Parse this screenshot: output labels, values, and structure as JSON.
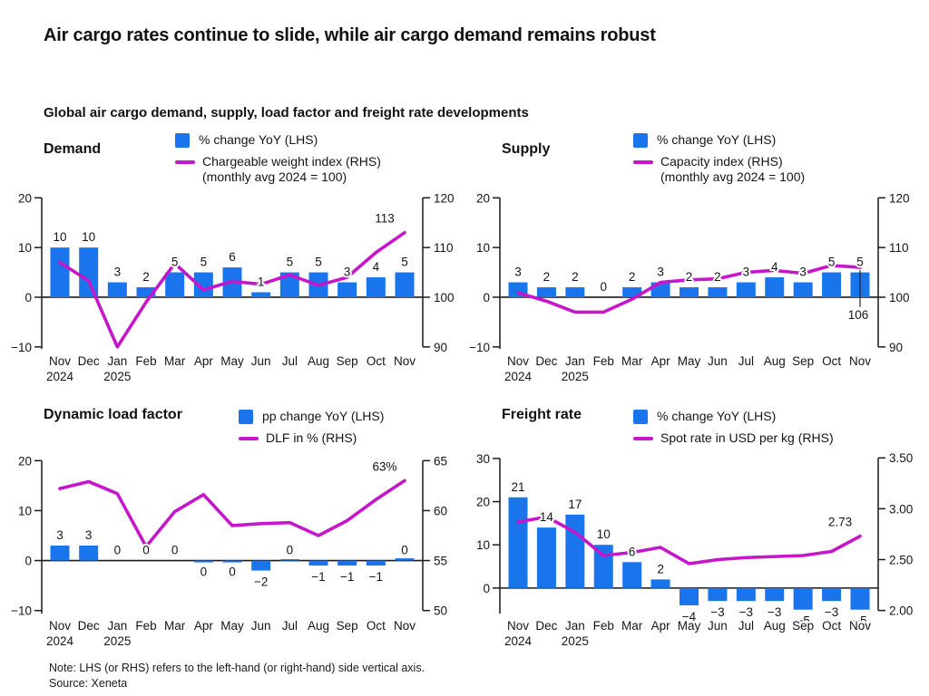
{
  "header": {
    "title": "Air cargo rates continue to slide, while air cargo demand remains robust",
    "subtitle": "Global air cargo demand, supply, load factor and freight rate developments"
  },
  "note": {
    "line1": "Note: LHS (or RHS) refers to the left-hand (or right-hand) side vertical axis.",
    "line2": "Source: Xeneta"
  },
  "colors": {
    "bar": "#1a75ec",
    "line": "#c517c9",
    "axis": "#1a1a1a",
    "text": "#151515"
  },
  "chart_data": [
    {
      "type": "bar+line",
      "title": "Demand",
      "legend": {
        "bar": "% change YoY (LHS)",
        "line": "Chargeable weight index (RHS)",
        "line_sub": "(monthly avg 2024 = 100)"
      },
      "categories": [
        "Nov",
        "Dec",
        "Jan",
        "Feb",
        "Mar",
        "Apr",
        "May",
        "Jun",
        "Jul",
        "Aug",
        "Sep",
        "Oct",
        "Nov"
      ],
      "year_labels": [
        {
          "index": 0,
          "label": "2024"
        },
        {
          "index": 2,
          "label": "2025"
        }
      ],
      "bar_values": [
        10,
        10,
        3,
        2,
        5,
        5,
        6,
        1,
        5,
        5,
        3,
        4,
        5
      ],
      "line_values": [
        107,
        103.3,
        90,
        99,
        106.8,
        101.5,
        103.2,
        102.6,
        104.5,
        102.4,
        104,
        109,
        113
      ],
      "line_end_label": "113",
      "left_axis_ticks": [
        20,
        10,
        0,
        -10
      ],
      "right_axis_ticks": [
        "120",
        "110",
        "100",
        "90"
      ],
      "left_range": [
        -10,
        20
      ],
      "right_range": [
        90,
        120
      ]
    },
    {
      "type": "bar+line",
      "title": "Supply",
      "legend": {
        "bar": "% change YoY (LHS)",
        "line": "Capacity index (RHS)",
        "line_sub": "(monthly avg 2024 = 100)"
      },
      "categories": [
        "Nov",
        "Dec",
        "Jan",
        "Feb",
        "Mar",
        "Apr",
        "May",
        "Jun",
        "Jul",
        "Aug",
        "Sep",
        "Oct",
        "Nov"
      ],
      "year_labels": [
        {
          "index": 0,
          "label": "2024"
        },
        {
          "index": 2,
          "label": "2025"
        }
      ],
      "bar_values": [
        3,
        2,
        2,
        0,
        2,
        3,
        2,
        2,
        3,
        4,
        3,
        5,
        5
      ],
      "line_values": [
        100.9,
        99.2,
        97,
        97,
        99.6,
        103,
        103.5,
        103.7,
        105,
        105.4,
        104.8,
        106.4,
        106
      ],
      "line_end_label": "106",
      "left_axis_ticks": [
        20,
        10,
        0,
        -10
      ],
      "right_axis_ticks": [
        "120",
        "110",
        "100",
        "90"
      ],
      "left_range": [
        -10,
        20
      ],
      "right_range": [
        90,
        120
      ]
    },
    {
      "type": "bar+line",
      "title": "Dynamic load factor",
      "legend": {
        "bar": "pp change YoY (LHS)",
        "line": "DLF in % (RHS)",
        "line_sub": ""
      },
      "categories": [
        "Nov",
        "Dec",
        "Jan",
        "Feb",
        "Mar",
        "Apr",
        "May",
        "Jun",
        "Jul",
        "Aug",
        "Sep",
        "Oct",
        "Nov"
      ],
      "year_labels": [
        {
          "index": 0,
          "label": "2024"
        },
        {
          "index": 2,
          "label": "2025"
        }
      ],
      "bar_values": [
        3,
        3,
        0,
        0,
        0,
        0,
        0,
        -2,
        0,
        -1,
        -1,
        -1,
        0
      ],
      "line_values": [
        62.2,
        62.9,
        61.7,
        56.4,
        59.9,
        61.6,
        58.5,
        58.7,
        58.8,
        57.5,
        59,
        61.1,
        63
      ],
      "line_end_label": "63%",
      "left_axis_ticks": [
        20,
        10,
        0,
        -10
      ],
      "right_axis_ticks": [
        "65",
        "60",
        "55",
        "50"
      ],
      "left_range": [
        -10,
        20
      ],
      "right_range": [
        50,
        65
      ]
    },
    {
      "type": "bar+line",
      "title": "Freight rate",
      "legend": {
        "bar": "% change YoY (LHS)",
        "line": "Spot rate in USD per kg (RHS)",
        "line_sub": ""
      },
      "categories": [
        "Nov",
        "Dec",
        "Jan",
        "Feb",
        "Mar",
        "Apr",
        "May",
        "Jun",
        "Jul",
        "Aug",
        "Sep",
        "Oct",
        "Nov"
      ],
      "year_labels": [
        {
          "index": 0,
          "label": "2024"
        },
        {
          "index": 2,
          "label": "2025"
        }
      ],
      "bar_values": [
        21,
        14,
        17,
        10,
        6,
        2,
        -4,
        -3,
        -3,
        -3,
        -5,
        -3,
        -5
      ],
      "line_values": [
        2.87,
        2.92,
        2.77,
        2.54,
        2.57,
        2.62,
        2.46,
        2.5,
        2.52,
        2.53,
        2.54,
        2.58,
        2.73
      ],
      "line_end_label": "2.73",
      "left_axis_ticks": [
        30,
        20,
        10,
        0
      ],
      "right_axis_ticks": [
        "3.50",
        "3.00",
        "2.50",
        "2.00"
      ],
      "left_range": [
        -6,
        30
      ],
      "right_range": [
        2.0,
        3.5
      ]
    }
  ]
}
